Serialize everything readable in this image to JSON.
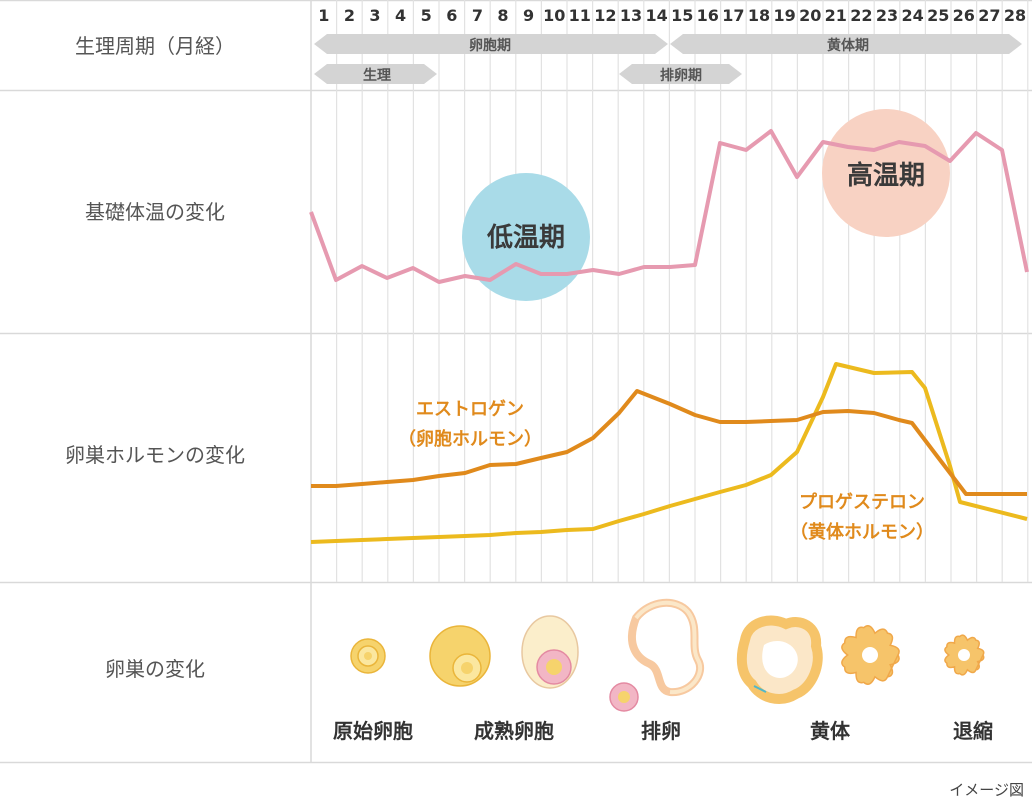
{
  "row_labels": {
    "cycle": "生理周期（月経）",
    "bbt": "基礎体温の変化",
    "hormone": "卵巣ホルモンの変化",
    "ovary": "卵巣の変化"
  },
  "days": [
    "1",
    "2",
    "3",
    "4",
    "5",
    "6",
    "7",
    "8",
    "9",
    "10",
    "11",
    "12",
    "13",
    "14",
    "15",
    "16",
    "17",
    "18",
    "19",
    "20",
    "21",
    "22",
    "23",
    "24",
    "25",
    "26",
    "27",
    "28"
  ],
  "phases": {
    "follicular": "卵胞期",
    "luteal": "黄体期",
    "menstruation": "生理",
    "ovulation_period": "排卵期"
  },
  "temperature": {
    "low_label": "低温期",
    "high_label": "高温期",
    "low_color": "#a9dbe8",
    "high_color": "#f8d2c3",
    "line_color": "#e69ab0"
  },
  "hormones": {
    "estrogen_label_1": "エストロゲン",
    "estrogen_label_2": "（卵胞ホルモン）",
    "progesterone_label_1": "プロゲステロン",
    "progesterone_label_2": "（黄体ホルモン）",
    "estrogen_color": "#e08a1c",
    "progesterone_color": "#ecba1e"
  },
  "ovary_stages": [
    "原始卵胞",
    "成熟卵胞",
    "排卵",
    "黄体",
    "退縮"
  ],
  "caption": "イメージ図",
  "colors": {
    "grid": "#d9d9d9",
    "arrow_fill": "#d4d4d4",
    "follicle_yellow": "#f6d36c",
    "follicle_pink": "#f2b6c5"
  }
}
